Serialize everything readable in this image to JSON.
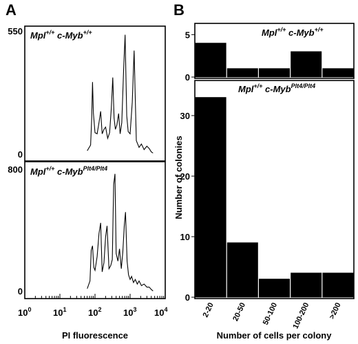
{
  "panel_a": {
    "letter": "A",
    "top": {
      "title_parts": [
        "Mpl",
        "+/+",
        " c-Myb",
        "+/+"
      ],
      "y_max_label": "550",
      "y_min_label": "0"
    },
    "bottom": {
      "title_parts": [
        "Mpl",
        "+/+",
        " c-Myb",
        "Plt4/Plt4"
      ],
      "y_max_label": "800",
      "y_min_label": "0"
    },
    "x_tick_labels": [
      {
        "base": "10",
        "exp": "0"
      },
      {
        "base": "10",
        "exp": "1"
      },
      {
        "base": "10",
        "exp": "2"
      },
      {
        "base": "10",
        "exp": "3"
      },
      {
        "base": "10",
        "exp": "4"
      }
    ],
    "xlabel": "PI fluorescence"
  },
  "panel_b": {
    "letter": "B",
    "ylabel": "Number of colonies",
    "xlabel": "Number of cells per colony"
  },
  "chart_data": [
    {
      "type": "line",
      "panel": "A-top",
      "title": "Mpl+/+ c-Myb+/+",
      "xscale": "log",
      "xlim": [
        1,
        10000
      ],
      "ylim": [
        0,
        550
      ],
      "xlabel": "PI fluorescence",
      "series": [
        {
          "x": [
            60,
            75,
            80,
            85,
            90,
            100,
            115,
            130,
            145,
            160,
            180,
            200,
            230,
            260,
            290,
            320,
            350,
            380,
            420,
            470,
            520,
            580,
            650,
            720,
            800,
            880,
            1000,
            1150,
            1300,
            1500,
            1800,
            2100,
            2500,
            3000,
            3500,
            4000,
            4500
          ],
          "y": [
            15,
            40,
            150,
            320,
            180,
            95,
            90,
            140,
            190,
            90,
            110,
            120,
            70,
            95,
            200,
            340,
            160,
            110,
            130,
            180,
            90,
            140,
            370,
            530,
            170,
            100,
            90,
            230,
            460,
            60,
            30,
            45,
            20,
            35,
            25,
            10,
            5
          ]
        }
      ]
    },
    {
      "type": "line",
      "panel": "A-bottom",
      "title": "Mpl+/+ c-MybPlt4/Plt4",
      "xscale": "log",
      "xlim": [
        1,
        10000
      ],
      "ylim": [
        0,
        800
      ],
      "xlabel": "PI fluorescence",
      "series": [
        {
          "x": [
            60,
            72,
            78,
            85,
            92,
            100,
            115,
            130,
            145,
            160,
            180,
            200,
            220,
            250,
            280,
            310,
            340,
            370,
            400,
            450,
            500,
            560,
            620,
            680,
            740,
            820,
            900,
            1000,
            1100,
            1250,
            1400,
            1600,
            1800,
            2100,
            2500,
            3000,
            3500,
            4000,
            4500
          ],
          "y": [
            20,
            70,
            270,
            300,
            160,
            140,
            230,
            380,
            450,
            130,
            190,
            360,
            430,
            150,
            170,
            210,
            700,
            770,
            250,
            200,
            280,
            150,
            260,
            430,
            520,
            200,
            110,
            80,
            100,
            60,
            80,
            50,
            70,
            40,
            50,
            30,
            30,
            15,
            5
          ]
        }
      ]
    },
    {
      "type": "bar",
      "panel": "B-top",
      "title": "Mpl+/+ c-Myb+/+",
      "categories": [
        "2-20",
        "20-50",
        "50-100",
        "100-200",
        ">200"
      ],
      "values": [
        4,
        1,
        1,
        3,
        1
      ],
      "ylim": [
        0,
        6
      ],
      "yticks": [
        0,
        5
      ]
    },
    {
      "type": "bar",
      "panel": "B-bottom",
      "title": "Mpl+/+ c-MybPlt4/Plt4",
      "categories": [
        "2-20",
        "20-50",
        "50-100",
        "100-200",
        ">200"
      ],
      "values": [
        33,
        9,
        3,
        4,
        4
      ],
      "ylim": [
        0,
        35
      ],
      "yticks": [
        0,
        10,
        20,
        30
      ],
      "xlabel": "Number of cells per colony",
      "ylabel": "Number of colonies"
    }
  ]
}
